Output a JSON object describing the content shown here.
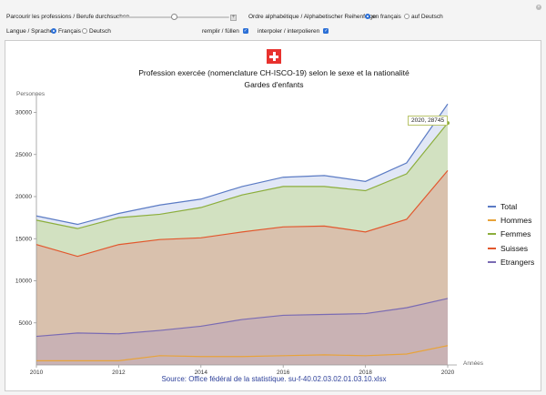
{
  "controls": {
    "browse_label": "Parcourir les professions / Berufe durchsuchen",
    "slider_value": 0.5,
    "order_label": "Ordre alphabétique / Alphabetischer Reihenfolge",
    "order_opt_fr": "en français",
    "order_opt_de": "auf Deutsch",
    "language_label": "Langue / Sprache",
    "lang_opt_fr": "Français",
    "lang_opt_de": "Deutsch",
    "fill_label": "remplir / füllen",
    "interp_label": "interpoler / interpolieren"
  },
  "chart_data": {
    "type": "area",
    "title_line1": "Profession exercée (nomenclature CH-ISCO-19) selon le sexe et la nationalité",
    "title_line2": "Gardes d'enfants",
    "ylabel": "Personnes",
    "xlabel": "Années",
    "source": "Source: Office fédéral de la statistique. su-f-40.02.03.02.01.03.10.xlsx",
    "x": [
      2010,
      2011,
      2012,
      2013,
      2014,
      2015,
      2016,
      2017,
      2018,
      2019,
      2020
    ],
    "xlim": [
      2010,
      2020
    ],
    "ylim": [
      0,
      32000
    ],
    "xticks": [
      "2010",
      "2012",
      "2014",
      "2016",
      "2018",
      "2020"
    ],
    "yticks": [
      "5000",
      "10000",
      "15000",
      "20000",
      "25000",
      "30000"
    ],
    "filled": true,
    "series": [
      {
        "name": "Total",
        "color": "#5b7bc4",
        "fill": "#e1e7f6",
        "values": [
          17700,
          16700,
          18000,
          19000,
          19700,
          21200,
          22300,
          22500,
          21800,
          24000,
          31000
        ]
      },
      {
        "name": "Hommes",
        "color": "#e8a33a",
        "fill": "none",
        "values": [
          500,
          500,
          500,
          1100,
          1000,
          1000,
          1100,
          1200,
          1100,
          1300,
          2300
        ]
      },
      {
        "name": "Femmes",
        "color": "#8cae3c",
        "fill": "#d2e1c1",
        "values": [
          17200,
          16200,
          17500,
          17900,
          18700,
          20200,
          21200,
          21200,
          20700,
          22700,
          28745
        ]
      },
      {
        "name": "Suisses",
        "color": "#e2572d",
        "fill": "#d9c1ad",
        "values": [
          14300,
          12900,
          14300,
          14900,
          15100,
          15800,
          16400,
          16500,
          15800,
          17300,
          23100
        ]
      },
      {
        "name": "Etrangers",
        "color": "#7a6bb3",
        "fill": "#c9b2b4",
        "values": [
          3400,
          3800,
          3700,
          4100,
          4600,
          5400,
          5900,
          6000,
          6100,
          6800,
          7900
        ]
      }
    ],
    "tooltip": "2020, 28745",
    "legend_position": "right"
  }
}
